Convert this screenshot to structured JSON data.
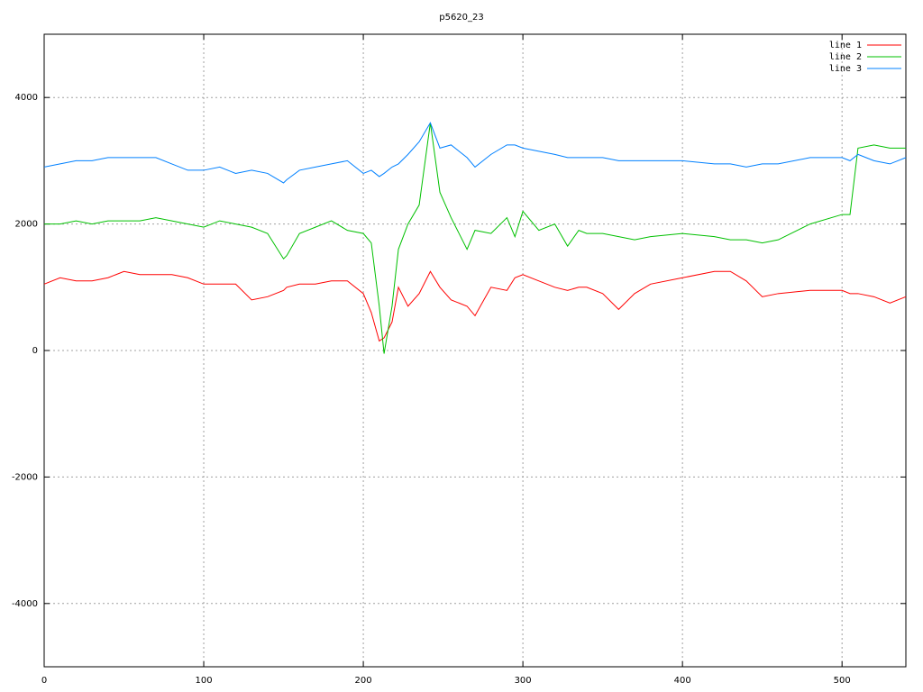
{
  "chart_data": {
    "type": "line",
    "title": "p5620_23",
    "x": [
      0,
      10,
      20,
      30,
      40,
      50,
      60,
      70,
      80,
      90,
      100,
      110,
      120,
      130,
      140,
      150,
      152,
      160,
      170,
      180,
      190,
      200,
      205,
      210,
      213,
      218,
      222,
      228,
      235,
      242,
      248,
      255,
      265,
      270,
      280,
      290,
      295,
      300,
      310,
      320,
      328,
      335,
      340,
      350,
      360,
      370,
      380,
      400,
      420,
      430,
      440,
      450,
      460,
      480,
      500,
      505,
      510,
      520,
      530,
      540
    ],
    "series": [
      {
        "name": "line 1",
        "color": "#ff0000",
        "values": [
          1050,
          1150,
          1100,
          1100,
          1150,
          1250,
          1200,
          1200,
          1200,
          1150,
          1050,
          1050,
          1050,
          800,
          850,
          950,
          1000,
          1050,
          1050,
          1100,
          1100,
          900,
          600,
          150,
          200,
          450,
          1000,
          700,
          900,
          1250,
          1000,
          800,
          700,
          550,
          1000,
          950,
          1150,
          1200,
          1100,
          1000,
          950,
          1000,
          1000,
          900,
          650,
          900,
          1050,
          1150,
          1250,
          1250,
          1100,
          850,
          900,
          950,
          950,
          900,
          900,
          850,
          750,
          850
        ]
      },
      {
        "name": "line 2",
        "color": "#00c000",
        "values": [
          2000,
          2000,
          2050,
          2000,
          2050,
          2050,
          2050,
          2100,
          2050,
          2000,
          1950,
          2050,
          2000,
          1950,
          1850,
          1450,
          1500,
          1850,
          1950,
          2050,
          1900,
          1850,
          1700,
          700,
          -50,
          700,
          1600,
          2000,
          2300,
          3600,
          2500,
          2100,
          1600,
          1900,
          1850,
          2100,
          1800,
          2200,
          1900,
          2000,
          1650,
          1900,
          1850,
          1850,
          1800,
          1750,
          1800,
          1850,
          1800,
          1750,
          1750,
          1700,
          1750,
          2000,
          2150,
          2150,
          3200,
          3250,
          3200,
          3200
        ]
      },
      {
        "name": "line 3",
        "color": "#0080ff",
        "values": [
          2900,
          2950,
          3000,
          3000,
          3050,
          3050,
          3050,
          3050,
          2950,
          2850,
          2850,
          2900,
          2800,
          2850,
          2800,
          2650,
          2700,
          2850,
          2900,
          2950,
          3000,
          2800,
          2850,
          2750,
          2800,
          2900,
          2950,
          3100,
          3300,
          3600,
          3200,
          3250,
          3050,
          2900,
          3100,
          3250,
          3250,
          3200,
          3150,
          3100,
          3050,
          3050,
          3050,
          3050,
          3000,
          3000,
          3000,
          3000,
          2950,
          2950,
          2900,
          2950,
          2950,
          3050,
          3050,
          3000,
          3100,
          3000,
          2950,
          3050
        ]
      }
    ],
    "xlim": [
      0,
      540
    ],
    "ylim": [
      -5000,
      5000
    ],
    "xticks": [
      0,
      100,
      200,
      300,
      400,
      500
    ],
    "yticks": [
      -4000,
      -2000,
      0,
      2000,
      4000
    ],
    "grid": true,
    "legend": "top-right"
  }
}
